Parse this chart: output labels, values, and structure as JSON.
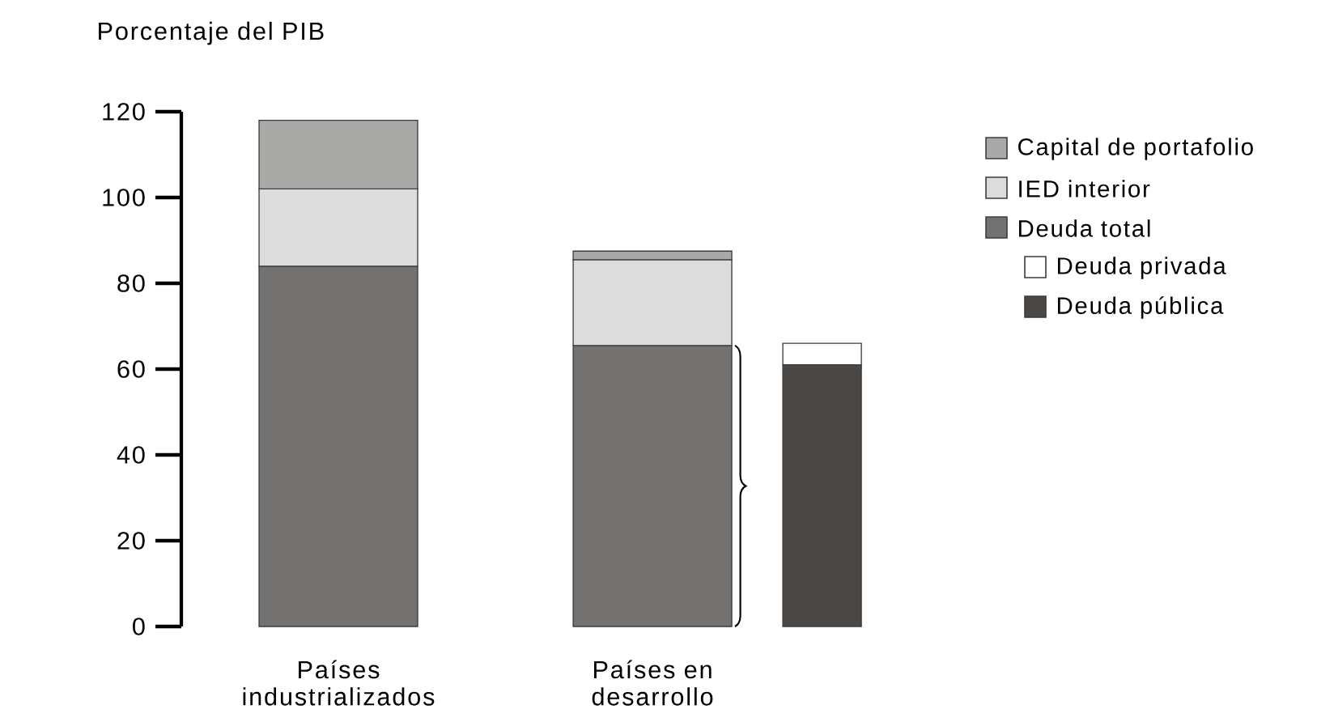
{
  "chart_data": {
    "type": "bar",
    "stacked": true,
    "ylabel": "Porcentaje del PIB",
    "categories": [
      "Países industrializados",
      "Países en desarrollo",
      null
    ],
    "series": [
      {
        "name": "Deuda total",
        "color": "#737270",
        "values": [
          84,
          65.5,
          null
        ]
      },
      {
        "name": "IED interior",
        "color": "#dcdcdc",
        "values": [
          18,
          20,
          null
        ]
      },
      {
        "name": "Capital de portafolio",
        "color": "#a9a9a7",
        "values": [
          16,
          2,
          null
        ]
      },
      {
        "name": "Deuda pública",
        "color": "#4b4744",
        "values": [
          null,
          null,
          61
        ]
      },
      {
        "name": "Deuda privada",
        "color": "#ffffff",
        "values": [
          null,
          null,
          5
        ]
      }
    ],
    "ylim": [
      0,
      120
    ],
    "yticks": [
      0,
      20,
      40,
      60,
      80,
      100,
      120
    ],
    "legend": "right",
    "grid": false
  }
}
